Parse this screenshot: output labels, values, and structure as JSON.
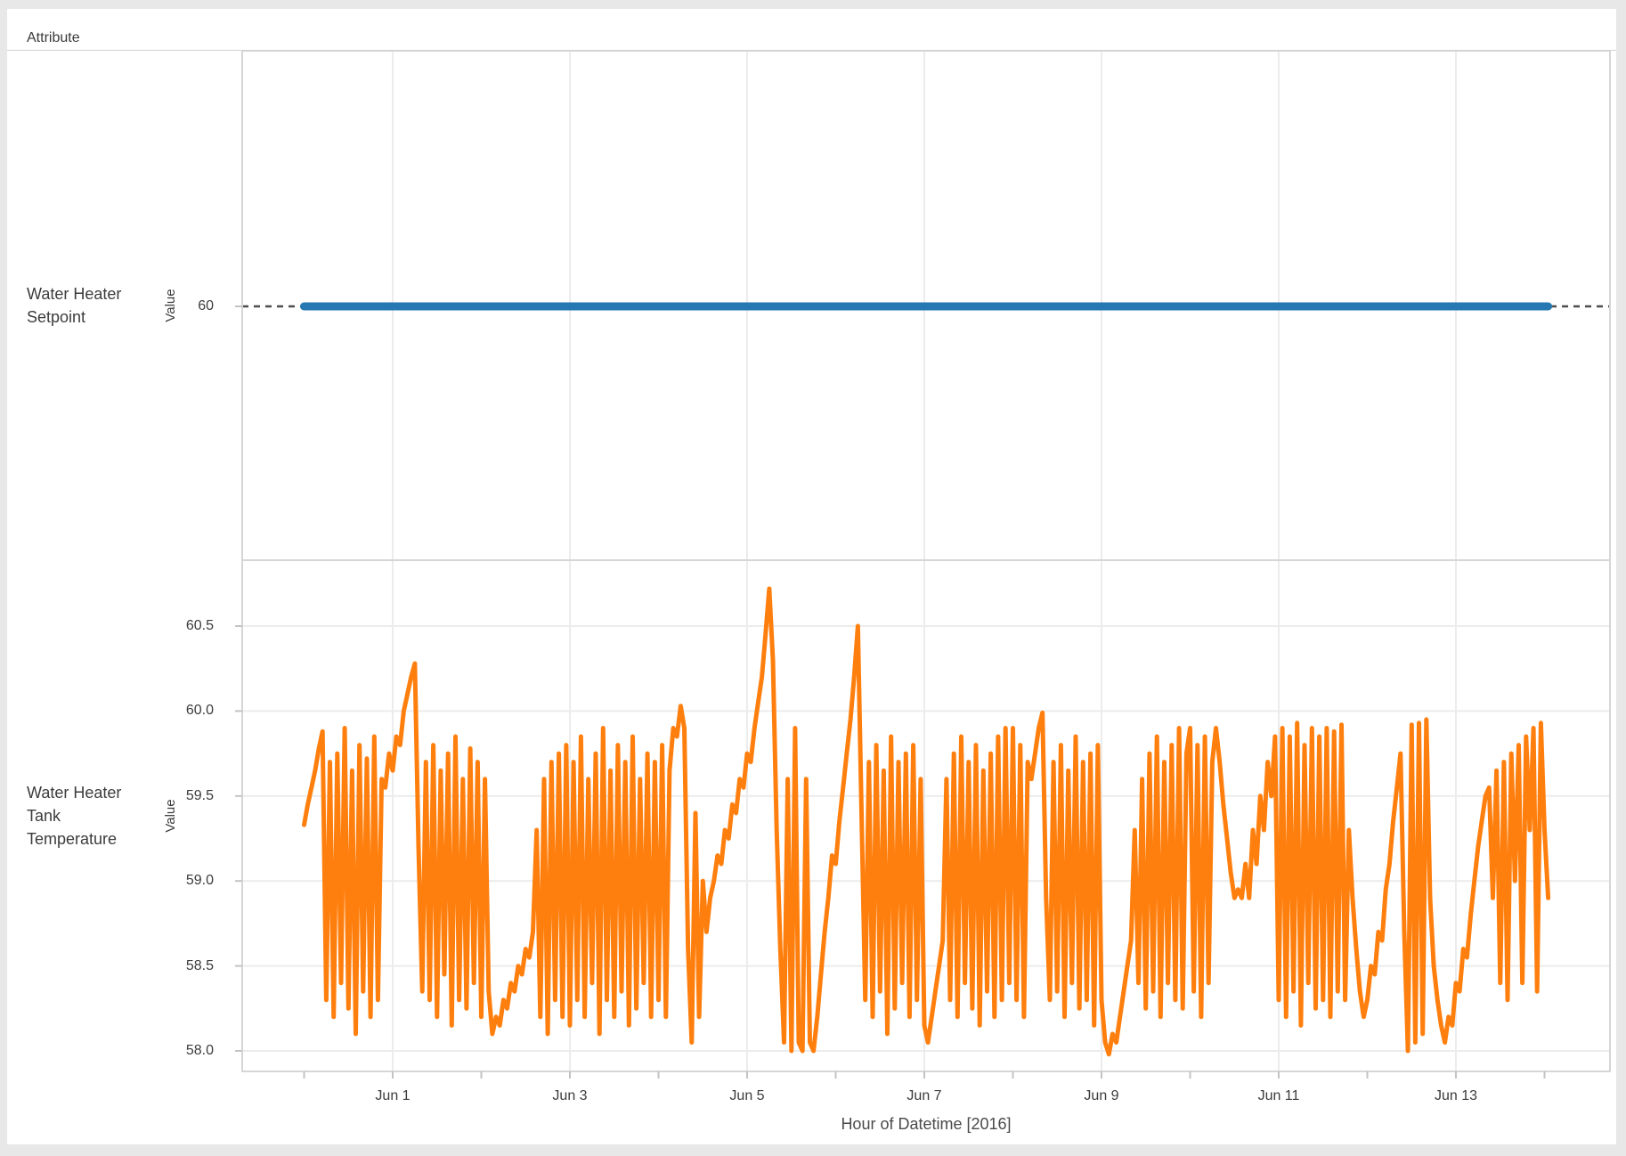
{
  "header": {
    "label": "Attribute"
  },
  "panels": [
    {
      "row_label_lines": [
        "Water Heater",
        "Setpoint"
      ],
      "y_axis_label": "Value",
      "y_ticks": [
        "60"
      ]
    },
    {
      "row_label_lines": [
        "Water Heater",
        "Tank",
        "Temperature"
      ],
      "y_axis_label": "Value",
      "y_ticks": [
        "58.0",
        "58.5",
        "59.0",
        "59.5",
        "60.0",
        "60.5"
      ]
    }
  ],
  "x_axis": {
    "title": "Hour of Datetime [2016]",
    "labels": [
      "Jun 1",
      "Jun 3",
      "Jun 5",
      "Jun 7",
      "Jun 9",
      "Jun 11",
      "Jun 13"
    ],
    "minor_ticks_every_days": 1
  },
  "colors": {
    "setpoint_line": "#2678b2",
    "tank_line": "#ff7f0e",
    "reference_line": "#4e4e4e",
    "gridline": "#ececec",
    "panel_border": "#d6d6d6",
    "tick_mark": "#c3c3c3",
    "text": "#3c3c3c",
    "page_background": "#e8e8e8",
    "card_background": "#ffffff"
  },
  "chart_data": [
    {
      "type": "line",
      "name": "Water Heater Setpoint",
      "color": "#2678b2",
      "ylabel": "Value",
      "y_tick_labels": [
        60
      ],
      "constant_value": 60,
      "x_start": "2016-05-31 00:00",
      "x_end": "2016-06-14 01:00",
      "reference_line": {
        "value": 60,
        "style": "dotted",
        "spans_full_axis": true
      }
    },
    {
      "type": "line",
      "name": "Water Heater Tank Temperature",
      "color": "#ff7f0e",
      "ylabel": "Value",
      "y_ticks": [
        58.0,
        58.5,
        59.0,
        59.5,
        60.0,
        60.5
      ],
      "ylim": [
        57.85,
        60.9
      ],
      "x_unit": "hour",
      "x_start": "2016-05-31 00:00",
      "step_hours": 1,
      "oscillation_band": [
        58.0,
        59.9
      ],
      "notable_peaks": [
        {
          "time": "Jun 1 ~06:00",
          "value": 60.28
        },
        {
          "time": "Jun 4 ~06:00",
          "value": 60.03
        },
        {
          "time": "Jun 5 ~06:00",
          "value": 60.72
        },
        {
          "time": "Jun 6 ~06:00",
          "value": 60.5
        },
        {
          "time": "Jun 8 ~08:00",
          "value": 59.99
        }
      ],
      "values": [
        59.33,
        59.45,
        59.55,
        59.65,
        59.78,
        59.88,
        58.3,
        59.7,
        58.2,
        59.75,
        58.4,
        59.9,
        58.25,
        59.65,
        58.1,
        59.8,
        58.35,
        59.72,
        58.2,
        59.85,
        58.3,
        59.6,
        59.55,
        59.75,
        59.65,
        59.85,
        59.8,
        60.0,
        60.1,
        60.2,
        60.28,
        59.2,
        58.35,
        59.7,
        58.3,
        59.8,
        58.2,
        59.65,
        58.45,
        59.75,
        58.15,
        59.85,
        58.3,
        59.6,
        58.25,
        59.78,
        58.4,
        59.7,
        58.2,
        59.6,
        58.35,
        58.1,
        58.2,
        58.15,
        58.3,
        58.25,
        58.4,
        58.35,
        58.5,
        58.45,
        58.6,
        58.55,
        58.7,
        59.3,
        58.2,
        59.6,
        58.1,
        59.7,
        58.3,
        59.75,
        58.2,
        59.8,
        58.15,
        59.7,
        58.3,
        59.85,
        58.2,
        59.6,
        58.4,
        59.75,
        58.1,
        59.9,
        58.3,
        59.65,
        58.2,
        59.8,
        58.35,
        59.7,
        58.15,
        59.85,
        58.25,
        59.6,
        58.4,
        59.75,
        58.2,
        59.7,
        58.3,
        59.8,
        58.2,
        59.65,
        59.9,
        59.85,
        60.03,
        59.9,
        58.6,
        58.05,
        59.4,
        58.2,
        59.0,
        58.7,
        58.9,
        59.0,
        59.15,
        59.1,
        59.3,
        59.25,
        59.45,
        59.4,
        59.6,
        59.55,
        59.75,
        59.7,
        59.9,
        60.05,
        60.2,
        60.45,
        60.72,
        60.3,
        59.3,
        58.6,
        58.05,
        59.6,
        58.0,
        59.9,
        58.05,
        58.0,
        59.6,
        58.05,
        58.0,
        58.2,
        58.45,
        58.7,
        58.9,
        59.15,
        59.1,
        59.35,
        59.55,
        59.75,
        59.95,
        60.2,
        60.5,
        59.4,
        58.3,
        59.7,
        58.2,
        59.8,
        58.35,
        59.65,
        58.1,
        59.85,
        58.25,
        59.7,
        58.4,
        59.75,
        58.2,
        59.8,
        58.3,
        59.6,
        58.15,
        58.05,
        58.2,
        58.35,
        58.5,
        58.65,
        59.6,
        58.3,
        59.75,
        58.2,
        59.85,
        58.4,
        59.7,
        58.25,
        59.8,
        58.15,
        59.65,
        58.35,
        59.75,
        58.2,
        59.85,
        58.3,
        59.9,
        58.4,
        59.9,
        58.3,
        59.8,
        58.2,
        59.7,
        59.6,
        59.75,
        59.9,
        59.99,
        58.9,
        58.3,
        59.7,
        58.35,
        59.8,
        58.2,
        59.65,
        58.4,
        59.85,
        58.25,
        59.7,
        58.3,
        59.75,
        58.15,
        59.8,
        58.3,
        58.05,
        57.98,
        58.1,
        58.05,
        58.2,
        58.35,
        58.5,
        58.65,
        59.3,
        58.4,
        59.6,
        58.25,
        59.75,
        58.35,
        59.85,
        58.2,
        59.7,
        58.4,
        59.8,
        58.3,
        59.9,
        58.25,
        59.75,
        59.9,
        58.35,
        59.8,
        58.2,
        59.85,
        58.4,
        59.7,
        59.9,
        59.7,
        59.45,
        59.25,
        59.05,
        58.9,
        58.95,
        58.9,
        59.1,
        58.9,
        59.3,
        59.1,
        59.5,
        59.3,
        59.7,
        59.5,
        59.85,
        58.3,
        59.9,
        58.2,
        59.85,
        58.35,
        59.93,
        58.15,
        59.8,
        58.4,
        59.9,
        58.25,
        59.85,
        58.3,
        59.9,
        58.2,
        59.88,
        58.35,
        59.92,
        58.3,
        59.3,
        58.9,
        58.6,
        58.35,
        58.2,
        58.3,
        58.5,
        58.45,
        58.7,
        58.65,
        58.95,
        59.1,
        59.35,
        59.55,
        59.75,
        58.7,
        58.0,
        59.92,
        58.05,
        59.93,
        58.1,
        59.95,
        58.9,
        58.5,
        58.3,
        58.15,
        58.05,
        58.2,
        58.15,
        58.4,
        58.35,
        58.6,
        58.55,
        58.8,
        59.0,
        59.2,
        59.35,
        59.5,
        59.55,
        58.9,
        59.65,
        58.4,
        59.7,
        58.3,
        59.75,
        59.0,
        59.8,
        58.4,
        59.85,
        59.3,
        59.9,
        58.35,
        59.93,
        59.3,
        58.9
      ]
    }
  ]
}
